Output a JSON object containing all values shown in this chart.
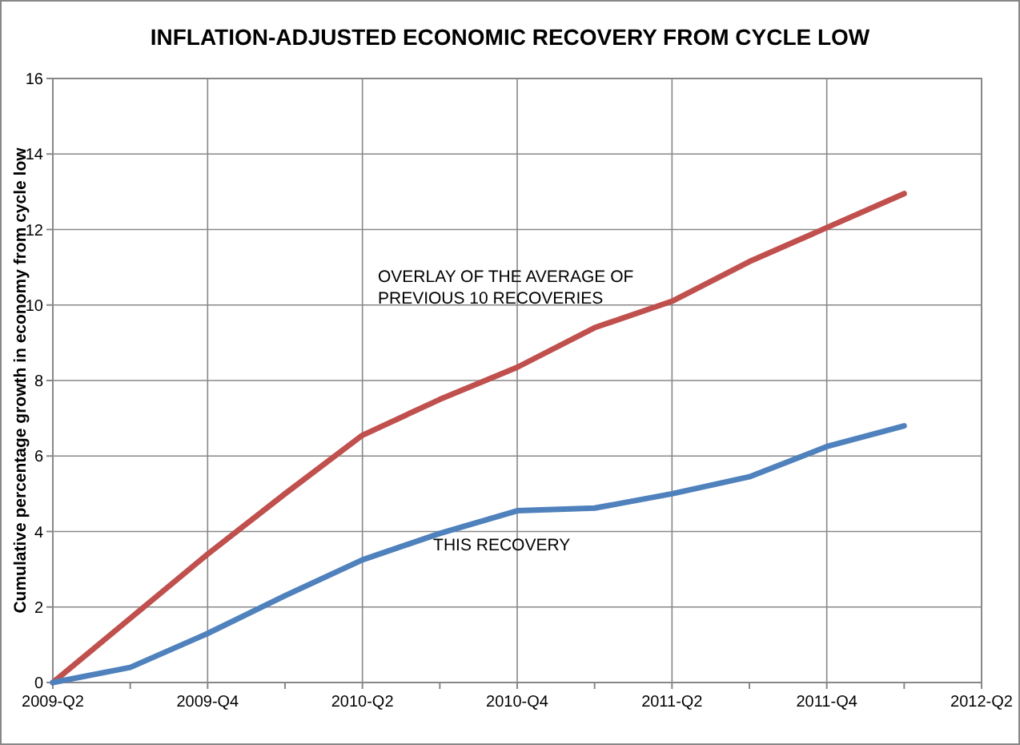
{
  "chart_data": {
    "type": "line",
    "title": "INFLATION-ADJUSTED ECONOMIC RECOVERY FROM CYCLE LOW",
    "ylabel": "Cumulative percentage growth in economy from cycle low",
    "categories": [
      "2009-Q2",
      null,
      "2009-Q4",
      null,
      "2010-Q2",
      null,
      "2010-Q4",
      null,
      "2011-Q2",
      null,
      "2011-Q4",
      null,
      "2012-Q2"
    ],
    "series": [
      {
        "name": "OVERLAY OF THE AVERAGE OF PREVIOUS 10 RECOVERIES",
        "color": "#c0504d",
        "values": [
          0,
          1.7,
          3.4,
          5.0,
          6.55,
          7.5,
          8.35,
          9.4,
          10.1,
          11.15,
          12.05,
          12.95,
          null
        ]
      },
      {
        "name": "THIS RECOVERY",
        "color": "#4f81bd",
        "values": [
          0,
          0.4,
          1.3,
          2.3,
          3.25,
          3.95,
          4.55,
          4.62,
          5.0,
          5.45,
          6.25,
          6.8,
          null
        ]
      }
    ],
    "ylim": [
      0,
      16
    ],
    "yticks": [
      0,
      2,
      4,
      6,
      8,
      10,
      12,
      14,
      16
    ],
    "grid": true,
    "marker": "none",
    "line_style": "solid"
  }
}
